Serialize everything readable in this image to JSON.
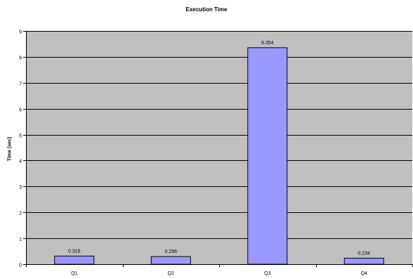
{
  "chart_data": {
    "type": "bar",
    "title": "Execution Time",
    "xlabel": "",
    "ylabel": "Time (sec)",
    "categories": [
      "Q1",
      "Q2",
      "Q3",
      "Q4"
    ],
    "values": [
      0.316,
      0.296,
      8.354,
      0.234
    ],
    "data_labels": [
      "0.316",
      "0.296",
      "8.354",
      "0.234"
    ],
    "ylim": [
      0,
      9
    ],
    "yticks": [
      0,
      1,
      2,
      3,
      4,
      5,
      6,
      7,
      8,
      9
    ],
    "grid": true,
    "legend": "none",
    "colors": {
      "plot_background": "#c0c0c0",
      "bar_fill": "#9999ff",
      "bar_stroke": "#000000",
      "gridline": "#000000"
    }
  }
}
